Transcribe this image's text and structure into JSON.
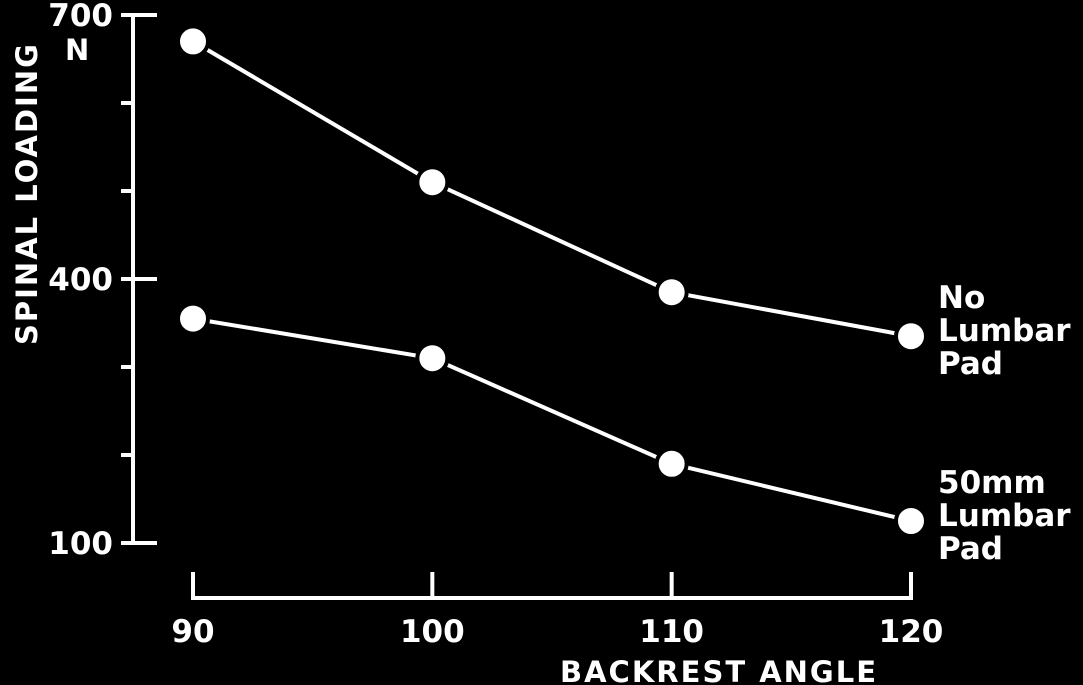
{
  "chart_data": {
    "type": "line",
    "x": [
      90,
      100,
      110,
      120
    ],
    "xlabel": "BACKREST ANGLE",
    "ylabel": "SPINAL LOADING",
    "yunit": "N",
    "xlim": [
      90,
      120
    ],
    "ylim": [
      100,
      700
    ],
    "x_ticks": [
      "90",
      "100",
      "110",
      "120"
    ],
    "y_ticks": [
      "700",
      "400",
      "100"
    ],
    "y_minor_ticks": [
      600,
      500,
      300,
      200
    ],
    "grid": false,
    "series": [
      {
        "name_lines": [
          "No",
          "Lumbar",
          "Pad"
        ],
        "values": [
          670,
          510,
          385,
          335
        ]
      },
      {
        "name_lines": [
          "50mm",
          "Lumbar",
          "Pad"
        ],
        "values": [
          355,
          310,
          190,
          125
        ]
      }
    ],
    "colors": {
      "background": "#000000",
      "foreground": "#ffffff"
    }
  }
}
